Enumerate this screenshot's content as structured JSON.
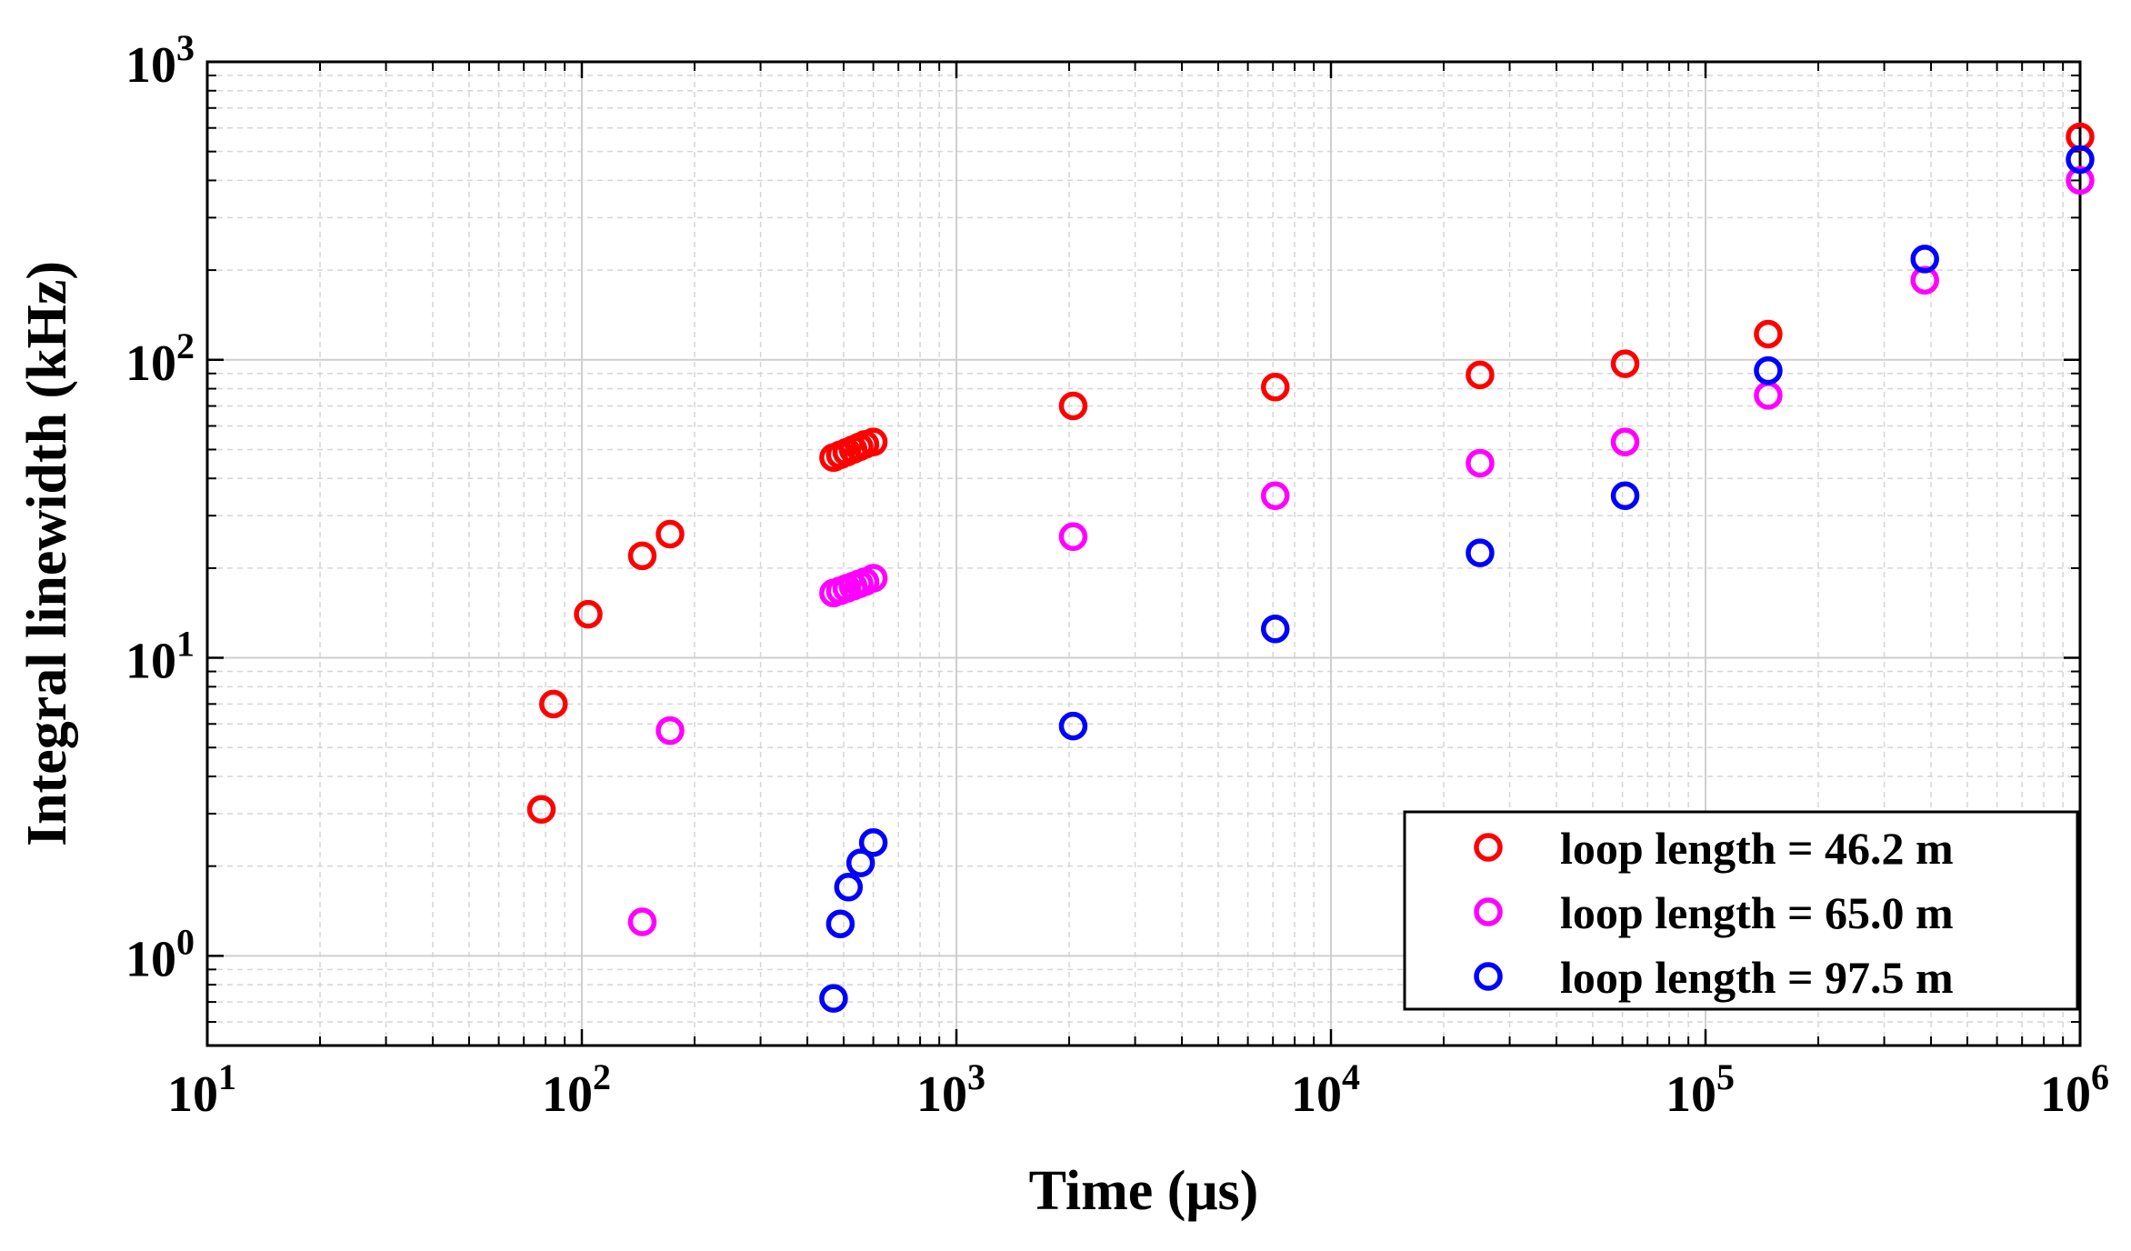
{
  "chart_data": {
    "type": "scatter",
    "title": "",
    "xlabel": "Time (μs)",
    "ylabel": "Integral linewidth (kHz)",
    "xscale": "log",
    "yscale": "log",
    "xlim": [
      10,
      1000000
    ],
    "ylim": [
      0.5,
      1000
    ],
    "grid": true,
    "legend_position": "bottom-right",
    "x_ticks": [
      {
        "value": 10,
        "base": "10",
        "exp": "1"
      },
      {
        "value": 100,
        "base": "10",
        "exp": "2"
      },
      {
        "value": 1000,
        "base": "10",
        "exp": "3"
      },
      {
        "value": 10000,
        "base": "10",
        "exp": "4"
      },
      {
        "value": 100000,
        "base": "10",
        "exp": "5"
      },
      {
        "value": 1000000,
        "base": "10",
        "exp": "6"
      }
    ],
    "y_ticks": [
      {
        "value": 1,
        "base": "10",
        "exp": "0"
      },
      {
        "value": 10,
        "base": "10",
        "exp": "1"
      },
      {
        "value": 100,
        "base": "10",
        "exp": "2"
      },
      {
        "value": 1000,
        "base": "10",
        "exp": "3"
      }
    ],
    "series": [
      {
        "name": "loop length = 46.2 m",
        "color": "#ff0000",
        "marker": "circle-open",
        "x": [
          78,
          84,
          104,
          145,
          172,
          470,
          490,
          510,
          530,
          550,
          570,
          600,
          2050,
          7100,
          25000,
          61000,
          147000,
          1000000
        ],
        "y": [
          3.1,
          7.0,
          14,
          22,
          26,
          47,
          48,
          49,
          50,
          51,
          52,
          53,
          70,
          81,
          89,
          97,
          122,
          560
        ]
      },
      {
        "name": "loop length = 65.0 m",
        "color": "#ff00ff",
        "marker": "circle-open",
        "x": [
          145,
          172,
          470,
          490,
          510,
          530,
          550,
          570,
          600,
          2050,
          7100,
          25000,
          61000,
          147000,
          385000,
          1000000
        ],
        "y": [
          1.3,
          5.7,
          16.5,
          16.8,
          17.1,
          17.4,
          17.7,
          18.0,
          18.5,
          25.5,
          35,
          45,
          53,
          76,
          185,
          400
        ]
      },
      {
        "name": "loop length = 97.5 m",
        "color": "#0000ff",
        "marker": "circle-open",
        "x": [
          470,
          490,
          515,
          555,
          600,
          2050,
          7100,
          25000,
          61000,
          147000,
          385000,
          1000000
        ],
        "y": [
          0.72,
          1.28,
          1.7,
          2.05,
          2.4,
          5.9,
          12.5,
          22.5,
          35,
          92,
          218,
          470
        ]
      }
    ]
  }
}
